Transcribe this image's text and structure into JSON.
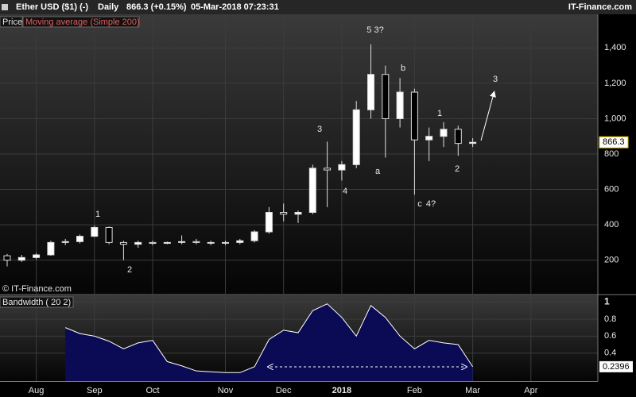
{
  "header": {
    "title": "Ether USD ($1) (-)",
    "period": "Daily",
    "quote": "866.3 (+0.15%)",
    "timestamp": "05-Mar-2018 07:23:31",
    "brand": "IT-Finance.com"
  },
  "chart_data": [
    {
      "type": "candlestick",
      "legend": [
        "Price",
        "Moving average (Simple 200)"
      ],
      "copyright": "© IT-Finance.com",
      "up_color": "#ffffff",
      "down_color": "#000000",
      "wick_color": "#dddddd",
      "open": [
        225,
        200,
        215,
        230,
        300,
        305,
        335,
        385,
        300,
        290,
        300,
        295,
        300,
        305,
        300,
        300,
        300,
        310,
        360,
        470,
        460,
        470,
        720,
        710,
        740,
        1050,
        1250,
        1000,
        1150,
        880,
        900,
        940,
        860,
        null,
        null,
        null,
        null,
        null,
        null,
        null,
        null
      ],
      "high": [
        235,
        230,
        240,
        310,
        320,
        345,
        395,
        390,
        310,
        310,
        310,
        305,
        340,
        320,
        310,
        310,
        320,
        370,
        500,
        520,
        480,
        740,
        870,
        760,
        1100,
        1420,
        1300,
        1230,
        1170,
        950,
        980,
        960,
        890,
        null,
        null,
        null,
        null,
        null,
        null,
        null,
        null
      ],
      "low": [
        165,
        190,
        205,
        225,
        285,
        295,
        330,
        290,
        200,
        270,
        285,
        290,
        290,
        290,
        285,
        285,
        290,
        300,
        350,
        420,
        410,
        460,
        500,
        650,
        720,
        1000,
        780,
        950,
        570,
        760,
        840,
        790,
        840,
        null,
        null,
        null,
        null,
        null,
        null,
        null,
        null
      ],
      "close": [
        200,
        215,
        230,
        300,
        305,
        335,
        385,
        300,
        290,
        300,
        295,
        300,
        305,
        300,
        300,
        300,
        310,
        360,
        470,
        460,
        470,
        720,
        710,
        740,
        1050,
        1250,
        1000,
        1150,
        880,
        900,
        940,
        860,
        866.3,
        null,
        null,
        null,
        null,
        null,
        null,
        null,
        null
      ],
      "ylim": [
        10,
        1590
      ],
      "yticks": [
        200,
        400,
        600,
        800,
        {
          "value": 1000,
          "label": "1,000"
        },
        {
          "value": 1200,
          "label": "1,200"
        },
        {
          "value": 1400,
          "label": "1,400"
        }
      ],
      "annotations": [
        "1",
        "2",
        "3",
        "4",
        "5 3?",
        "a",
        "b",
        "c",
        "4?",
        "1",
        "2",
        "3"
      ]
    },
    {
      "type": "area",
      "title": "Bandwidth ( 20 2)",
      "color": "#0b0b55",
      "categories": [
        null,
        null,
        "Aug",
        null,
        null,
        null,
        "Sep",
        null,
        null,
        null,
        "Oct",
        null,
        null,
        null,
        null,
        "Nov",
        null,
        null,
        null,
        "Dec",
        null,
        null,
        null,
        "2018",
        null,
        null,
        null,
        null,
        "Feb",
        null,
        null,
        null,
        "Mar",
        null,
        null,
        null,
        "Apr",
        null,
        null,
        null,
        null
      ],
      "values": [
        null,
        null,
        null,
        null,
        0.7,
        0.63,
        0.6,
        0.54,
        0.45,
        0.52,
        0.55,
        0.3,
        0.25,
        0.19,
        0.18,
        0.17,
        0.17,
        0.24,
        0.56,
        0.67,
        0.64,
        0.9,
        0.98,
        0.82,
        0.6,
        0.96,
        0.82,
        0.6,
        0.45,
        0.55,
        0.52,
        0.5,
        0.2396,
        null,
        null,
        null,
        null,
        null,
        null,
        null,
        null
      ],
      "ylim": [
        0.07,
        1.08
      ],
      "yticks": [
        0.4,
        0.6,
        0.8,
        1
      ]
    }
  ]
}
